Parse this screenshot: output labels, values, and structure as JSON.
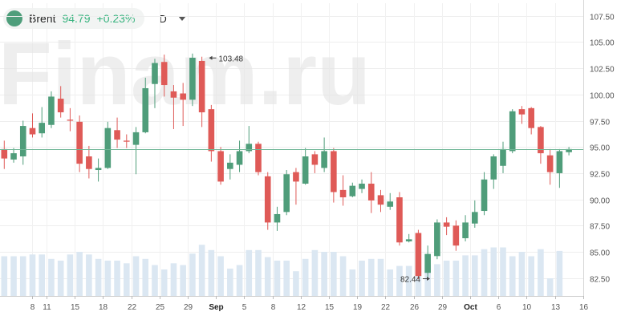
{
  "watermark": "Finam.ru",
  "header": {
    "symbol": "Brent",
    "price": "94.79",
    "change": "+0.23%",
    "timeframe": "D",
    "dot_color": "#4e9e7b",
    "up_color": "#37b37e"
  },
  "chart_data": {
    "type": "candlestick",
    "title": "",
    "xlabel": "",
    "ylabel": "",
    "ylim": [
      80.8,
      108.7
    ],
    "y_ticks": [
      "107.50",
      "105.00",
      "102.50",
      "100.00",
      "97.50",
      "95.00",
      "92.50",
      "90.00",
      "87.50",
      "85.00",
      "82.50"
    ],
    "x_tick_labels": [
      {
        "label": "8",
        "i": 2
      },
      {
        "label": "11",
        "i": 3
      },
      {
        "label": "15",
        "i": 5
      },
      {
        "label": "18",
        "i": 7
      },
      {
        "label": "22",
        "i": 9
      },
      {
        "label": "25",
        "i": 11
      },
      {
        "label": "29",
        "i": 13
      },
      {
        "label": "Sep",
        "i": 15
      },
      {
        "label": "5",
        "i": 17
      },
      {
        "label": "8",
        "i": 19
      },
      {
        "label": "12",
        "i": 21
      },
      {
        "label": "15",
        "i": 23
      },
      {
        "label": "19",
        "i": 25
      },
      {
        "label": "22",
        "i": 27
      },
      {
        "label": "26",
        "i": 29
      },
      {
        "label": "29",
        "i": 31
      },
      {
        "label": "Oct",
        "i": 33
      },
      {
        "label": "6",
        "i": 35
      },
      {
        "label": "10",
        "i": 37
      },
      {
        "label": "13",
        "i": 39
      },
      {
        "label": "16",
        "i": 41
      }
    ],
    "current_price": "94.79",
    "current_value": 94.79,
    "annotations": [
      {
        "label": "103.48",
        "i": 14,
        "value": 103.48,
        "side": "right"
      },
      {
        "label": "82.44",
        "i": 30,
        "value": 82.44,
        "side": "left"
      }
    ],
    "candles": [
      [
        94.8,
        93.9,
        95.6,
        92.9
      ],
      [
        93.8,
        94.4,
        94.9,
        93.5
      ],
      [
        94.1,
        97.0,
        97.5,
        93.3
      ],
      [
        96.8,
        96.2,
        98.2,
        95.9
      ],
      [
        96.3,
        97.3,
        98.8,
        95.9
      ],
      [
        97.1,
        99.8,
        100.3,
        96.8
      ],
      [
        99.6,
        98.3,
        100.8,
        97.8
      ],
      [
        97.6,
        97.5,
        98.7,
        96.5
      ],
      [
        97.4,
        93.4,
        98.0,
        92.6
      ],
      [
        94.1,
        92.9,
        95.1,
        92.0
      ],
      [
        92.8,
        93.0,
        93.9,
        91.7
      ],
      [
        93.0,
        96.8,
        97.4,
        92.9
      ],
      [
        96.6,
        95.7,
        97.8,
        94.9
      ],
      [
        95.6,
        95.5,
        96.2,
        94.9
      ],
      [
        95.2,
        96.4,
        96.9,
        92.4
      ],
      [
        96.4,
        100.6,
        101.6,
        96.3
      ],
      [
        101.0,
        103.0,
        103.4,
        98.7
      ],
      [
        103.1,
        100.9,
        103.8,
        99.8
      ],
      [
        100.3,
        99.7,
        100.9,
        96.7
      ],
      [
        100.1,
        99.5,
        101.1,
        97.0
      ],
      [
        99.5,
        103.5,
        103.9,
        98.9
      ],
      [
        103.2,
        98.3,
        103.6,
        96.9
      ],
      [
        98.6,
        94.6,
        99.0,
        93.6
      ],
      [
        94.6,
        91.7,
        95.0,
        91.4
      ],
      [
        92.9,
        93.5,
        94.3,
        91.9
      ],
      [
        93.3,
        94.6,
        95.6,
        92.6
      ],
      [
        94.6,
        95.3,
        97.0,
        94.4
      ],
      [
        95.3,
        92.6,
        95.5,
        92.3
      ],
      [
        92.2,
        87.8,
        92.6,
        87.1
      ],
      [
        87.8,
        88.6,
        89.3,
        87.0
      ],
      [
        88.8,
        92.4,
        92.8,
        88.5
      ],
      [
        92.6,
        91.7,
        93.0,
        89.5
      ],
      [
        91.5,
        94.1,
        94.9,
        91.4
      ],
      [
        94.3,
        93.3,
        94.6,
        92.5
      ],
      [
        93.0,
        94.6,
        95.9,
        92.6
      ],
      [
        94.6,
        90.7,
        94.9,
        89.7
      ],
      [
        90.9,
        90.2,
        92.3,
        89.4
      ],
      [
        90.3,
        91.3,
        91.6,
        90.2
      ],
      [
        91.0,
        91.5,
        91.9,
        90.6
      ],
      [
        91.5,
        89.9,
        92.6,
        88.7
      ],
      [
        90.4,
        89.5,
        90.9,
        88.8
      ],
      [
        89.3,
        89.8,
        90.6,
        89.0
      ],
      [
        90.2,
        85.9,
        90.7,
        85.6
      ],
      [
        86.0,
        86.2,
        86.7,
        85.9
      ],
      [
        86.8,
        82.7,
        87.1,
        82.4
      ],
      [
        83.0,
        84.8,
        85.6,
        82.6
      ],
      [
        84.6,
        87.8,
        88.1,
        84.3
      ],
      [
        87.8,
        87.4,
        88.3,
        86.6
      ],
      [
        87.5,
        85.6,
        88.0,
        85.1
      ],
      [
        86.3,
        87.8,
        88.5,
        86.0
      ],
      [
        87.7,
        88.8,
        89.9,
        87.3
      ],
      [
        88.9,
        91.9,
        92.6,
        88.5
      ],
      [
        91.9,
        94.1,
        94.3,
        91.0
      ],
      [
        93.2,
        94.8,
        95.5,
        92.5
      ],
      [
        94.6,
        98.4,
        98.6,
        94.4
      ],
      [
        98.6,
        98.1,
        98.9,
        97.2
      ],
      [
        98.7,
        96.8,
        98.8,
        96.2
      ],
      [
        96.9,
        94.4,
        97.0,
        93.4
      ],
      [
        94.2,
        92.6,
        94.8,
        91.4
      ],
      [
        92.5,
        94.6,
        94.8,
        91.1
      ],
      [
        94.5,
        94.8,
        95.0,
        94.2
      ]
    ],
    "volumes": [
      0.45,
      0.45,
      0.45,
      0.47,
      0.47,
      0.42,
      0.4,
      0.47,
      0.5,
      0.47,
      0.42,
      0.4,
      0.4,
      0.37,
      0.45,
      0.42,
      0.35,
      0.3,
      0.37,
      0.35,
      0.48,
      0.58,
      0.52,
      0.45,
      0.31,
      0.35,
      0.52,
      0.52,
      0.44,
      0.4,
      0.4,
      0.28,
      0.42,
      0.52,
      0.5,
      0.5,
      0.45,
      0.3,
      0.4,
      0.42,
      0.42,
      0.3,
      0.34,
      0.34,
      0.34,
      0.36,
      0.36,
      0.4,
      0.4,
      0.46,
      0.46,
      0.53,
      0.55,
      0.55,
      0.45,
      0.5,
      0.45,
      0.53,
      0.2,
      0.51,
      0.0
    ]
  }
}
